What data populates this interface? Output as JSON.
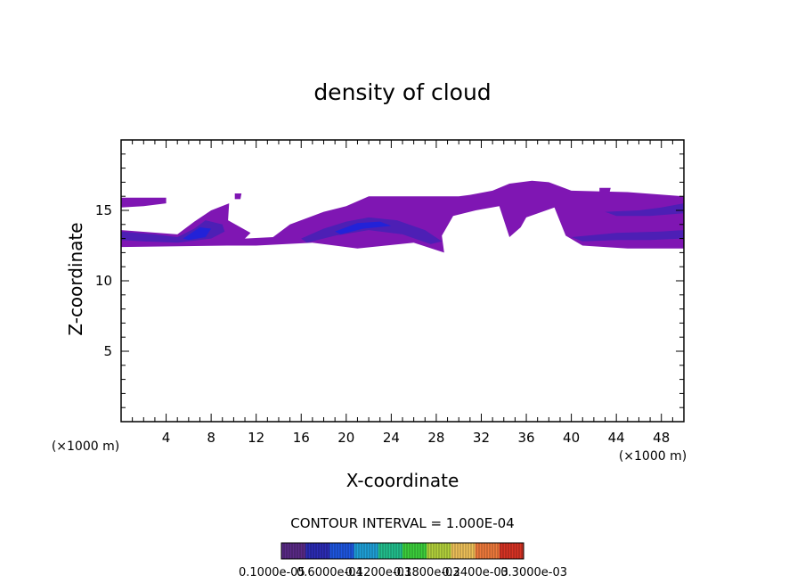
{
  "chart_data": {
    "type": "heatmap",
    "title": "density of cloud",
    "xlabel": "X-coordinate",
    "ylabel": "Z-coordinate",
    "x_unit_left": "(×1000 m)",
    "x_unit_right": "(×1000 m)",
    "xlim": [
      0,
      50
    ],
    "ylim": [
      0,
      20
    ],
    "x_ticks": [
      4,
      8,
      12,
      16,
      20,
      24,
      28,
      32,
      36,
      40,
      44,
      48
    ],
    "y_ticks": [
      5,
      10,
      15
    ],
    "grid": false,
    "contour_interval_text": "CONTOUR INTERVAL = 1.000E-04",
    "colorbar_labels": [
      "0.1000e-05",
      "0.6000e-04",
      "0.1200e-03",
      "0.1800e-03",
      "0.2400e-03",
      "0.3000e-03"
    ],
    "regions": [
      {
        "name": "main-layer",
        "level": 1,
        "points": [
          [
            0,
            15.9
          ],
          [
            4,
            15.9
          ],
          [
            4,
            15.5
          ],
          [
            2,
            15.3
          ],
          [
            0,
            15.2
          ],
          [
            0,
            13.6
          ],
          [
            5,
            13.3
          ],
          [
            6.5,
            14.2
          ],
          [
            8,
            15.0
          ],
          [
            9.6,
            15.5
          ],
          [
            9.5,
            14.3
          ],
          [
            11.5,
            13.4
          ],
          [
            11,
            13.0
          ],
          [
            13.5,
            13.1
          ],
          [
            15,
            14.0
          ],
          [
            18,
            14.9
          ],
          [
            20,
            15.3
          ],
          [
            22,
            16.0
          ],
          [
            26,
            16.0
          ],
          [
            30,
            16.0
          ],
          [
            31,
            16.1
          ],
          [
            33,
            16.4
          ],
          [
            34.5,
            16.9
          ],
          [
            36.5,
            17.1
          ],
          [
            38,
            17.0
          ],
          [
            40,
            16.4
          ],
          [
            45,
            16.3
          ],
          [
            50,
            16.0
          ],
          [
            50,
            12.3
          ],
          [
            45,
            12.3
          ],
          [
            41,
            12.5
          ],
          [
            39.5,
            13.2
          ],
          [
            38.5,
            15.2
          ],
          [
            36,
            14.5
          ],
          [
            35.5,
            13.8
          ],
          [
            34.5,
            13.1
          ],
          [
            33.6,
            15.3
          ],
          [
            31.5,
            15.0
          ],
          [
            29.5,
            14.6
          ],
          [
            28.5,
            13.2
          ],
          [
            28.7,
            12.0
          ],
          [
            26,
            12.7
          ],
          [
            21,
            12.3
          ],
          [
            17,
            12.7
          ],
          [
            12,
            12.5
          ],
          [
            9.5,
            12.5
          ],
          [
            0,
            12.4
          ]
        ]
      },
      {
        "name": "island-1",
        "level": 1,
        "points": [
          [
            10.1,
            16.2
          ],
          [
            10.7,
            16.2
          ],
          [
            10.6,
            15.8
          ],
          [
            10.1,
            15.8
          ]
        ]
      },
      {
        "name": "island-2",
        "level": 1,
        "points": [
          [
            42.5,
            16.6
          ],
          [
            43.5,
            16.6
          ],
          [
            43.4,
            16.3
          ],
          [
            42.5,
            16.3
          ]
        ]
      },
      {
        "name": "core-1",
        "level": 2,
        "points": [
          [
            0,
            13.5
          ],
          [
            3,
            13.3
          ],
          [
            5,
            13.1
          ],
          [
            6.5,
            13.7
          ],
          [
            7.5,
            14.3
          ],
          [
            9,
            14.0
          ],
          [
            9.2,
            13.5
          ],
          [
            8,
            13.0
          ],
          [
            5,
            12.7
          ],
          [
            2,
            12.8
          ],
          [
            0,
            12.9
          ]
        ]
      },
      {
        "name": "core-2",
        "level": 2,
        "points": [
          [
            16,
            13.0
          ],
          [
            18,
            13.7
          ],
          [
            20,
            14.2
          ],
          [
            22,
            14.5
          ],
          [
            24.5,
            14.3
          ],
          [
            27,
            13.6
          ],
          [
            28.5,
            12.8
          ],
          [
            27.5,
            12.6
          ],
          [
            25,
            13.3
          ],
          [
            22,
            13.6
          ],
          [
            19,
            13.2
          ],
          [
            16.5,
            12.7
          ]
        ]
      },
      {
        "name": "core-3",
        "level": 2,
        "points": [
          [
            40,
            13.1
          ],
          [
            44,
            13.4
          ],
          [
            48,
            13.5
          ],
          [
            50,
            13.6
          ],
          [
            50,
            13.0
          ],
          [
            47,
            12.9
          ],
          [
            44,
            12.9
          ],
          [
            41,
            12.8
          ]
        ]
      },
      {
        "name": "core-4",
        "level": 2,
        "points": [
          [
            43,
            14.9
          ],
          [
            46,
            15.0
          ],
          [
            48,
            15.2
          ],
          [
            50,
            15.5
          ],
          [
            50,
            14.8
          ],
          [
            47,
            14.6
          ],
          [
            44,
            14.6
          ]
        ]
      },
      {
        "name": "core-5",
        "level": 3,
        "points": [
          [
            5.5,
            13.0
          ],
          [
            7,
            13.8
          ],
          [
            8,
            13.7
          ],
          [
            7.5,
            13.1
          ],
          [
            6,
            12.9
          ]
        ]
      },
      {
        "name": "core-6",
        "level": 3,
        "points": [
          [
            19,
            13.5
          ],
          [
            21,
            14.1
          ],
          [
            23,
            14.2
          ],
          [
            24,
            13.9
          ],
          [
            21.5,
            13.7
          ],
          [
            19.5,
            13.3
          ]
        ]
      }
    ],
    "level_colors": [
      "#ffffff",
      "#7f16b3",
      "#4d1fb5",
      "#2222d8"
    ],
    "colorbar_colors": [
      "#5a2a87",
      "#2c2cb5",
      "#1e56e0",
      "#1fa0d8",
      "#22c08e",
      "#3dd03d",
      "#b4d23c",
      "#f0c25a",
      "#f07a3c",
      "#d83324"
    ]
  }
}
